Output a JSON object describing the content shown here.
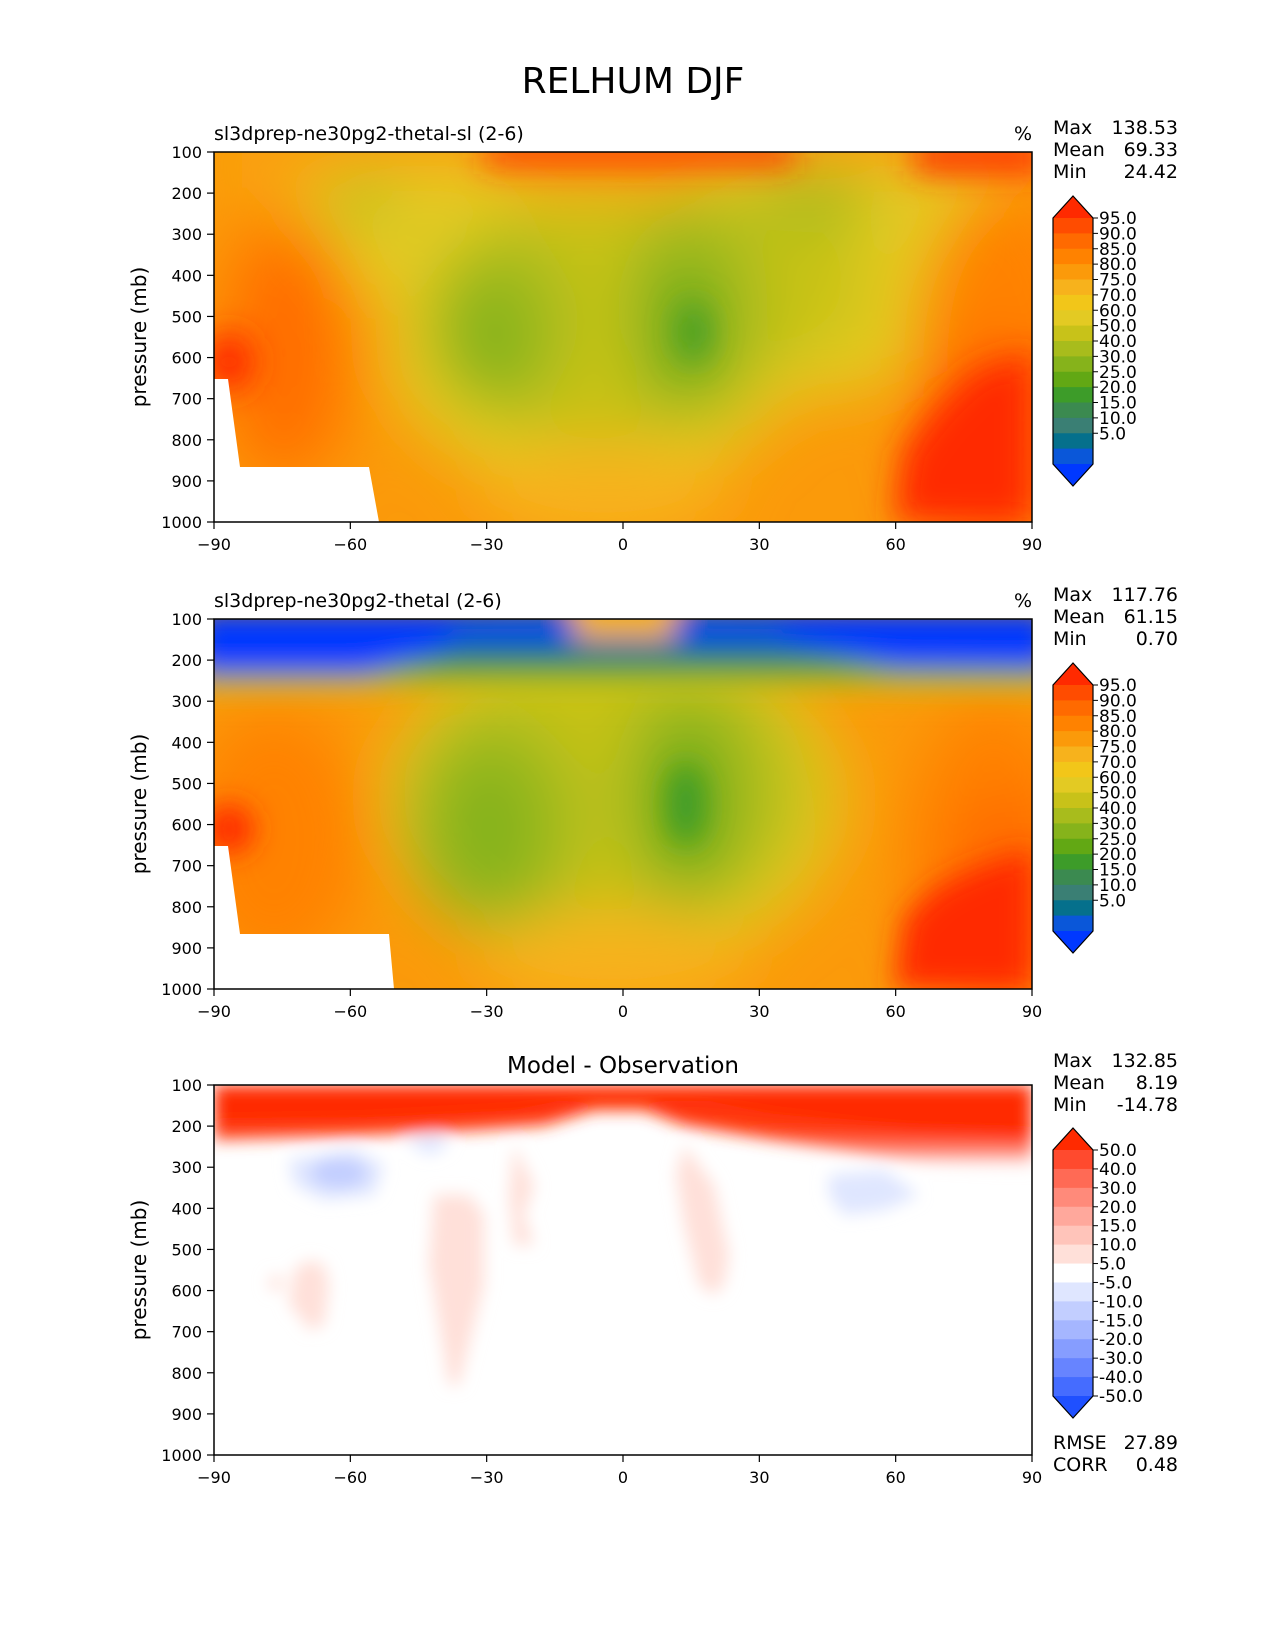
{
  "title": "RELHUM DJF",
  "panels": [
    {
      "title": "sl3dprep-ne30pg2-thetal-sl (2-6)",
      "units": "%",
      "stats": [
        {
          "label": "Max",
          "value": "138.53"
        },
        {
          "label": "Mean",
          "value": "69.33"
        },
        {
          "label": "Min",
          "value": "24.42"
        }
      ]
    },
    {
      "title": "sl3dprep-ne30pg2-thetal (2-6)",
      "units": "%",
      "stats": [
        {
          "label": "Max",
          "value": "117.76"
        },
        {
          "label": "Mean",
          "value": "61.15"
        },
        {
          "label": "Min",
          "value": "0.70"
        }
      ]
    },
    {
      "title": "Model - Observation",
      "units": "",
      "stats": [
        {
          "label": "Max",
          "value": "132.85"
        },
        {
          "label": "Mean",
          "value": "8.19"
        },
        {
          "label": "Min",
          "value": "-14.78"
        }
      ],
      "extra_stats": [
        {
          "label": "RMSE",
          "value": "27.89"
        },
        {
          "label": "CORR",
          "value": "0.48"
        }
      ]
    }
  ],
  "chart_data": [
    {
      "type": "heatmap",
      "title": "sl3dprep-ne30pg2-thetal-sl (2-6)",
      "units": "%",
      "ylabel": "pressure (mb)",
      "x_ticks": [
        -90,
        -60,
        -30,
        0,
        30,
        60,
        90
      ],
      "y_ticks": [
        100,
        200,
        300,
        400,
        500,
        600,
        700,
        800,
        900,
        1000
      ],
      "xlim": [
        -90,
        90
      ],
      "ylim": [
        1000,
        100
      ],
      "colorbar": {
        "levels": [
          "95.0",
          "90.0",
          "85.0",
          "80.0",
          "75.0",
          "70.0",
          "60.0",
          "50.0",
          "40.0",
          "30.0",
          "25.0",
          "20.0",
          "15.0",
          "10.0",
          "5.0"
        ],
        "colors": [
          "#ff2a00",
          "#ff4c00",
          "#ff6a00",
          "#ff8200",
          "#fb9a0a",
          "#f7b21c",
          "#f2c619",
          "#e3ca23",
          "#c8c219",
          "#a8bc1c",
          "#86b31b",
          "#62a814",
          "#3d9c29",
          "#3b8a50",
          "#3a7f74",
          "#05708c",
          "#0a57d9",
          "#0038ff"
        ]
      },
      "grid": false
    },
    {
      "type": "heatmap",
      "title": "sl3dprep-ne30pg2-thetal (2-6)",
      "units": "%",
      "ylabel": "pressure (mb)",
      "x_ticks": [
        -90,
        -60,
        -30,
        0,
        30,
        60,
        90
      ],
      "y_ticks": [
        100,
        200,
        300,
        400,
        500,
        600,
        700,
        800,
        900,
        1000
      ],
      "xlim": [
        -90,
        90
      ],
      "ylim": [
        1000,
        100
      ],
      "colorbar": {
        "levels": [
          "95.0",
          "90.0",
          "85.0",
          "80.0",
          "75.0",
          "70.0",
          "60.0",
          "50.0",
          "40.0",
          "30.0",
          "25.0",
          "20.0",
          "15.0",
          "10.0",
          "5.0"
        ],
        "colors": [
          "#ff2a00",
          "#ff4c00",
          "#ff6a00",
          "#ff8200",
          "#fb9a0a",
          "#f7b21c",
          "#f2c619",
          "#e3ca23",
          "#c8c219",
          "#a8bc1c",
          "#86b31b",
          "#62a814",
          "#3d9c29",
          "#3b8a50",
          "#3a7f74",
          "#05708c",
          "#0a57d9",
          "#0038ff"
        ]
      },
      "grid": false
    },
    {
      "type": "heatmap",
      "title": "Model - Observation",
      "ylabel": "pressure (mb)",
      "x_ticks": [
        -90,
        -60,
        -30,
        0,
        30,
        60,
        90
      ],
      "y_ticks": [
        100,
        200,
        300,
        400,
        500,
        600,
        700,
        800,
        900,
        1000
      ],
      "xlim": [
        -90,
        90
      ],
      "ylim": [
        1000,
        100
      ],
      "colorbar": {
        "levels": [
          "50.0",
          "40.0",
          "30.0",
          "20.0",
          "15.0",
          "10.0",
          "5.0",
          "-5.0",
          "-10.0",
          "-15.0",
          "-20.0",
          "-30.0",
          "-40.0",
          "-50.0"
        ],
        "colors": [
          "#ff2a00",
          "#ff4a2e",
          "#ff6a55",
          "#ff8a7a",
          "#ffa89c",
          "#ffc4ba",
          "#ffe0d9",
          "#ffffff",
          "#dfe6ff",
          "#c2ceff",
          "#a5b6ff",
          "#869dff",
          "#6784ff",
          "#456cff",
          "#1f50ff"
        ]
      },
      "grid": false
    }
  ]
}
